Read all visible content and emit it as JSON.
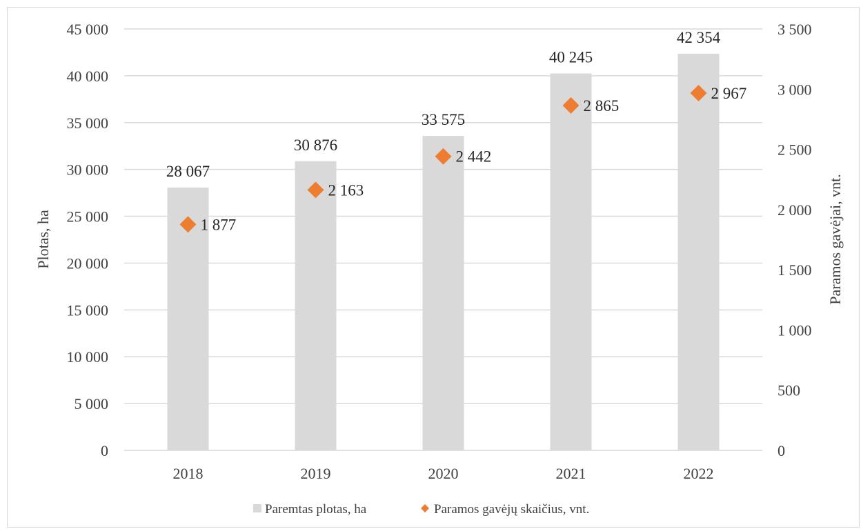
{
  "chart_data": {
    "type": "bar",
    "categories": [
      "2018",
      "2019",
      "2020",
      "2021",
      "2022"
    ],
    "series": [
      {
        "name": "Paremtas plotas, ha",
        "type": "bar",
        "axis": "left",
        "color": "#d9d9d9",
        "values": [
          28067,
          30876,
          33575,
          40245,
          42354
        ],
        "labels": [
          "28 067",
          "30 876",
          "33 575",
          "40 245",
          "42 354"
        ]
      },
      {
        "name": "Paramos gavėjų skaičius, vnt.",
        "type": "scatter",
        "marker": "diamond",
        "axis": "right",
        "color": "#ed7d31",
        "values": [
          1877,
          2163,
          2442,
          2865,
          2967
        ],
        "labels": [
          "1 877",
          "2 163",
          "2 442",
          "2 865",
          "2 967"
        ]
      }
    ],
    "ylabel": "Plotas, ha",
    "y2label": "Paramos gavėjai, vnt.",
    "ylim": [
      0,
      45000
    ],
    "y2lim": [
      0,
      3500
    ],
    "yticks": [
      {
        "value": 0,
        "label": "0"
      },
      {
        "value": 5000,
        "label": "5 000"
      },
      {
        "value": 10000,
        "label": "10 000"
      },
      {
        "value": 15000,
        "label": "15 000"
      },
      {
        "value": 20000,
        "label": "20 000"
      },
      {
        "value": 25000,
        "label": "25 000"
      },
      {
        "value": 30000,
        "label": "30 000"
      },
      {
        "value": 35000,
        "label": "35 000"
      },
      {
        "value": 40000,
        "label": "40 000"
      },
      {
        "value": 45000,
        "label": "45 000"
      }
    ],
    "y2ticks": [
      {
        "value": 0,
        "label": "0"
      },
      {
        "value": 500,
        "label": "500"
      },
      {
        "value": 1000,
        "label": "1 000"
      },
      {
        "value": 1500,
        "label": "1 500"
      },
      {
        "value": 2000,
        "label": "2 000"
      },
      {
        "value": 2500,
        "label": "2 500"
      },
      {
        "value": 3000,
        "label": "3 000"
      },
      {
        "value": 3500,
        "label": "3 500"
      }
    ],
    "grid": true,
    "gridColor": "#d9d9d9",
    "legend": "bottom-center"
  }
}
